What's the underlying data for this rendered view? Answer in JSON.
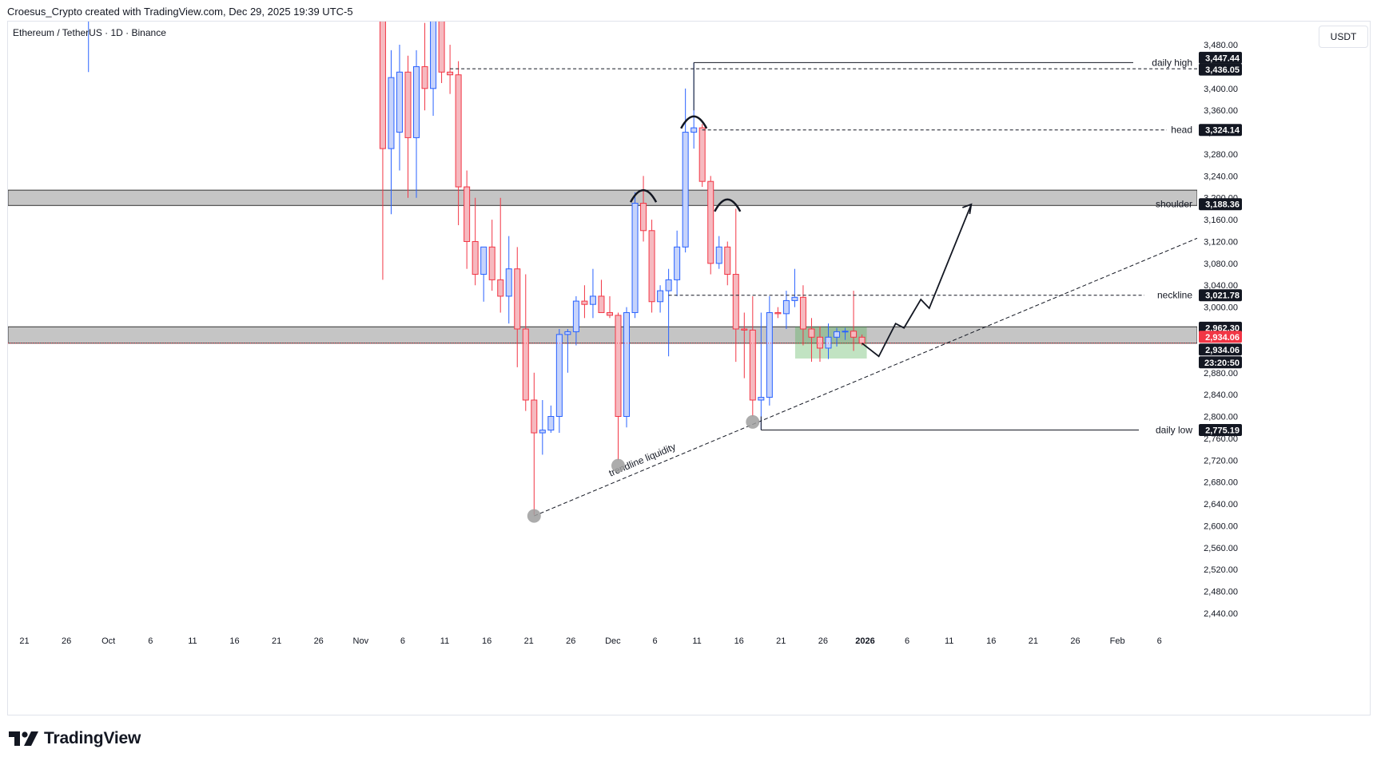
{
  "header": {
    "attribution": "Croesus_Crypto created with TradingView.com, Dec 29, 2025 19:39 UTC-5",
    "symbol_title": "Ethereum / TetherUS · 1D · Binance",
    "currency": "USDT"
  },
  "footer": {
    "brand": "TradingView"
  },
  "colors": {
    "up": "#2962ff",
    "down": "#f23645",
    "up_fill": "#c6d3fb",
    "down_fill": "#f6b9bf",
    "zone": "#9e9e9e",
    "consolidation": "#4caf50"
  },
  "chart_data": {
    "type": "candlestick",
    "symbol": "Ethereum / TetherUS",
    "timeframe": "1D",
    "exchange": "Binance",
    "y_axis": {
      "min": 2400,
      "max": 3480,
      "ticks": [
        "3,480.00",
        "3,400.00",
        "3,360.00",
        "3,320.00",
        "3,280.00",
        "3,240.00",
        "3,200.00",
        "3,160.00",
        "3,120.00",
        "3,080.00",
        "3,040.00",
        "3,000.00",
        "2,880.00",
        "2,840.00",
        "2,800.00",
        "2,760.00",
        "2,720.00",
        "2,680.00",
        "2,640.00",
        "2,600.00",
        "2,560.00",
        "2,520.00",
        "2,480.00",
        "2,440.00"
      ]
    },
    "x_axis": {
      "ticks": [
        "21",
        "26",
        "Oct",
        "6",
        "11",
        "16",
        "21",
        "26",
        "Nov",
        "6",
        "11",
        "16",
        "21",
        "26",
        "Dec",
        "6",
        "11",
        "16",
        "21",
        "26",
        "2026",
        "6",
        "11",
        "16",
        "21",
        "26",
        "Feb",
        "6"
      ]
    },
    "price_tags": [
      {
        "value": 3447.44,
        "label": "3,447.44",
        "style": "dark"
      },
      {
        "value": 3436.05,
        "label": "3,436.05",
        "style": "dark"
      },
      {
        "value": 3324.14,
        "label": "3,324.14",
        "style": "dark"
      },
      {
        "value": 3188.36,
        "label": "3,188.36",
        "style": "dark"
      },
      {
        "value": 3021.78,
        "label": "3,021.78",
        "style": "dark"
      },
      {
        "value": 2962.3,
        "label": "2,962.30",
        "style": "dark"
      },
      {
        "value": 2934.06,
        "label": "2,934.06",
        "style": "red"
      },
      {
        "value": 2934.06,
        "label": "2,934.06",
        "style": "dark"
      },
      {
        "value": 2775.19,
        "label": "2,775.19",
        "style": "dark"
      }
    ],
    "countdown": "23:20:50",
    "levels": [
      {
        "label": "daily high",
        "value": 3447.44
      },
      {
        "label": "head",
        "value": 3324.14
      },
      {
        "label": "shoulder",
        "value": 3188.36
      },
      {
        "label": "neckline",
        "value": 3021.78
      },
      {
        "label": "daily low",
        "value": 2775.19
      }
    ],
    "zones": [
      {
        "from": 3186,
        "to": 3214
      },
      {
        "from": 2934,
        "to": 2964
      }
    ],
    "annotations": {
      "trendline": "trendline liquidity"
    },
    "candles": [
      {
        "date": "2025-09-29",
        "o": 4150,
        "h": 4250,
        "l": 3430,
        "c": 4200
      },
      {
        "date": "2025-11-03",
        "o": 3600,
        "h": 3700,
        "l": 3050,
        "c": 3290
      },
      {
        "date": "2025-11-04",
        "o": 3290,
        "h": 3470,
        "l": 3170,
        "c": 3420
      },
      {
        "date": "2025-11-05",
        "o": 3320,
        "h": 3480,
        "l": 3250,
        "c": 3430
      },
      {
        "date": "2025-11-06",
        "o": 3430,
        "h": 3460,
        "l": 3200,
        "c": 3310
      },
      {
        "date": "2025-11-07",
        "o": 3310,
        "h": 3470,
        "l": 3200,
        "c": 3440
      },
      {
        "date": "2025-11-08",
        "o": 3440,
        "h": 3520,
        "l": 3360,
        "c": 3400
      },
      {
        "date": "2025-11-09",
        "o": 3400,
        "h": 3580,
        "l": 3350,
        "c": 3560
      },
      {
        "date": "2025-11-10",
        "o": 3560,
        "h": 3620,
        "l": 3410,
        "c": 3430
      },
      {
        "date": "2025-11-11",
        "o": 3430,
        "h": 3480,
        "l": 3390,
        "c": 3425
      },
      {
        "date": "2025-11-12",
        "o": 3425,
        "h": 3450,
        "l": 3150,
        "c": 3220
      },
      {
        "date": "2025-11-13",
        "o": 3220,
        "h": 3250,
        "l": 3070,
        "c": 3120
      },
      {
        "date": "2025-11-14",
        "o": 3120,
        "h": 3200,
        "l": 3040,
        "c": 3060
      },
      {
        "date": "2025-11-15",
        "o": 3060,
        "h": 3110,
        "l": 3010,
        "c": 3110
      },
      {
        "date": "2025-11-16",
        "o": 3110,
        "h": 3160,
        "l": 3030,
        "c": 3050
      },
      {
        "date": "2025-11-17",
        "o": 3050,
        "h": 3200,
        "l": 2990,
        "c": 3020
      },
      {
        "date": "2025-11-18",
        "o": 3020,
        "h": 3130,
        "l": 2970,
        "c": 3070
      },
      {
        "date": "2025-11-19",
        "o": 3070,
        "h": 3110,
        "l": 2890,
        "c": 2960
      },
      {
        "date": "2025-11-20",
        "o": 2960,
        "h": 3060,
        "l": 2810,
        "c": 2830
      },
      {
        "date": "2025-11-21",
        "o": 2830,
        "h": 2880,
        "l": 2620,
        "c": 2770
      },
      {
        "date": "2025-11-22",
        "o": 2770,
        "h": 2830,
        "l": 2730,
        "c": 2775
      },
      {
        "date": "2025-11-23",
        "o": 2775,
        "h": 2820,
        "l": 2770,
        "c": 2800
      },
      {
        "date": "2025-11-24",
        "o": 2800,
        "h": 2960,
        "l": 2770,
        "c": 2950
      },
      {
        "date": "2025-11-25",
        "o": 2950,
        "h": 2960,
        "l": 2880,
        "c": 2955
      },
      {
        "date": "2025-11-26",
        "o": 2955,
        "h": 3020,
        "l": 2930,
        "c": 3011
      },
      {
        "date": "2025-11-27",
        "o": 3011,
        "h": 3040,
        "l": 2980,
        "c": 3005
      },
      {
        "date": "2025-11-28",
        "o": 3005,
        "h": 3070,
        "l": 2980,
        "c": 3020
      },
      {
        "date": "2025-11-29",
        "o": 3020,
        "h": 3050,
        "l": 2990,
        "c": 2990
      },
      {
        "date": "2025-11-30",
        "o": 2990,
        "h": 3020,
        "l": 2980,
        "c": 2985
      },
      {
        "date": "2025-12-01",
        "o": 2985,
        "h": 2990,
        "l": 2720,
        "c": 2800
      },
      {
        "date": "2025-12-02",
        "o": 2800,
        "h": 3000,
        "l": 2780,
        "c": 2990
      },
      {
        "date": "2025-12-03",
        "o": 2990,
        "h": 3210,
        "l": 2980,
        "c": 3190
      },
      {
        "date": "2025-12-04",
        "o": 3190,
        "h": 3240,
        "l": 3120,
        "c": 3140
      },
      {
        "date": "2025-12-05",
        "o": 3140,
        "h": 3160,
        "l": 2990,
        "c": 3010
      },
      {
        "date": "2025-12-06",
        "o": 3010,
        "h": 3040,
        "l": 2990,
        "c": 3030
      },
      {
        "date": "2025-12-07",
        "o": 3030,
        "h": 3070,
        "l": 2910,
        "c": 3050
      },
      {
        "date": "2025-12-08",
        "o": 3050,
        "h": 3140,
        "l": 3020,
        "c": 3110
      },
      {
        "date": "2025-12-09",
        "o": 3110,
        "h": 3400,
        "l": 3100,
        "c": 3320
      },
      {
        "date": "2025-12-10",
        "o": 3320,
        "h": 3447.44,
        "l": 3290,
        "c": 3328
      },
      {
        "date": "2025-12-11",
        "o": 3328,
        "h": 3335,
        "l": 3220,
        "c": 3230
      },
      {
        "date": "2025-12-12",
        "o": 3230,
        "h": 3240,
        "l": 3060,
        "c": 3080
      },
      {
        "date": "2025-12-13",
        "o": 3080,
        "h": 3130,
        "l": 3070,
        "c": 3110
      },
      {
        "date": "2025-12-14",
        "o": 3110,
        "h": 3120,
        "l": 3040,
        "c": 3060
      },
      {
        "date": "2025-12-15",
        "o": 3060,
        "h": 3180,
        "l": 2900,
        "c": 2960
      },
      {
        "date": "2025-12-16",
        "o": 2960,
        "h": 2990,
        "l": 2870,
        "c": 2958
      },
      {
        "date": "2025-12-17",
        "o": 2958,
        "h": 3020,
        "l": 2800,
        "c": 2830
      },
      {
        "date": "2025-12-18",
        "o": 2830,
        "h": 2990,
        "l": 2775.19,
        "c": 2835
      },
      {
        "date": "2025-12-19",
        "o": 2835,
        "h": 3020,
        "l": 2820,
        "c": 2990
      },
      {
        "date": "2025-12-20",
        "o": 2990,
        "h": 3000,
        "l": 2980,
        "c": 2988
      },
      {
        "date": "2025-12-21",
        "o": 2988,
        "h": 3030,
        "l": 2960,
        "c": 3012
      },
      {
        "date": "2025-12-22",
        "o": 3012,
        "h": 3070,
        "l": 3000,
        "c": 3018
      },
      {
        "date": "2025-12-23",
        "o": 3018,
        "h": 3040,
        "l": 2930,
        "c": 2960
      },
      {
        "date": "2025-12-24",
        "o": 2960,
        "h": 2980,
        "l": 2900,
        "c": 2945
      },
      {
        "date": "2025-12-25",
        "o": 2945,
        "h": 2965,
        "l": 2900,
        "c": 2925
      },
      {
        "date": "2025-12-26",
        "o": 2925,
        "h": 2970,
        "l": 2905,
        "c": 2945
      },
      {
        "date": "2025-12-27",
        "o": 2945,
        "h": 2962,
        "l": 2928,
        "c": 2955
      },
      {
        "date": "2025-12-28",
        "o": 2955,
        "h": 2962,
        "l": 2940,
        "c": 2956
      },
      {
        "date": "2025-12-29",
        "o": 2956,
        "h": 3030,
        "l": 2920,
        "c": 2945
      },
      {
        "date": "2025-12-30",
        "o": 2945,
        "h": 2950,
        "l": 2930,
        "c": 2934.06
      }
    ]
  }
}
